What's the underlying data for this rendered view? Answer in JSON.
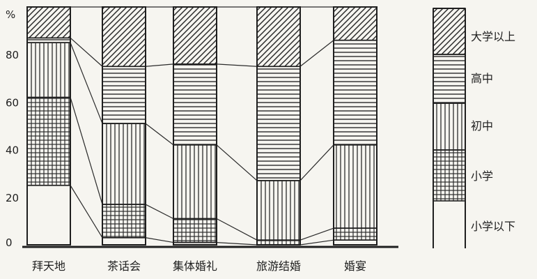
{
  "chart_data": {
    "type": "bar",
    "stacked": true,
    "percent_stacked": true,
    "y_unit": "%",
    "ylim": [
      0,
      100
    ],
    "yticks": [
      0,
      20,
      40,
      60,
      80
    ],
    "grid": false,
    "legend_position": "right",
    "categories": [
      "拜天地",
      "茶话会",
      "集体婚礼",
      "旅游结婚",
      "婚宴"
    ],
    "series": [
      {
        "name": "小学以下",
        "pattern": "blank",
        "values": [
          25,
          3,
          1,
          0,
          2
        ]
      },
      {
        "name": "小学",
        "pattern": "grid",
        "values": [
          37,
          14,
          10,
          2,
          5
        ]
      },
      {
        "name": "初中",
        "pattern": "vertical",
        "values": [
          23,
          34,
          31,
          25,
          35
        ]
      },
      {
        "name": "高中",
        "pattern": "horizontal",
        "values": [
          2,
          24,
          34,
          48,
          44
        ]
      },
      {
        "name": "大学以上",
        "pattern": "diagonal",
        "values": [
          13,
          25,
          24,
          25,
          14
        ]
      }
    ]
  }
}
